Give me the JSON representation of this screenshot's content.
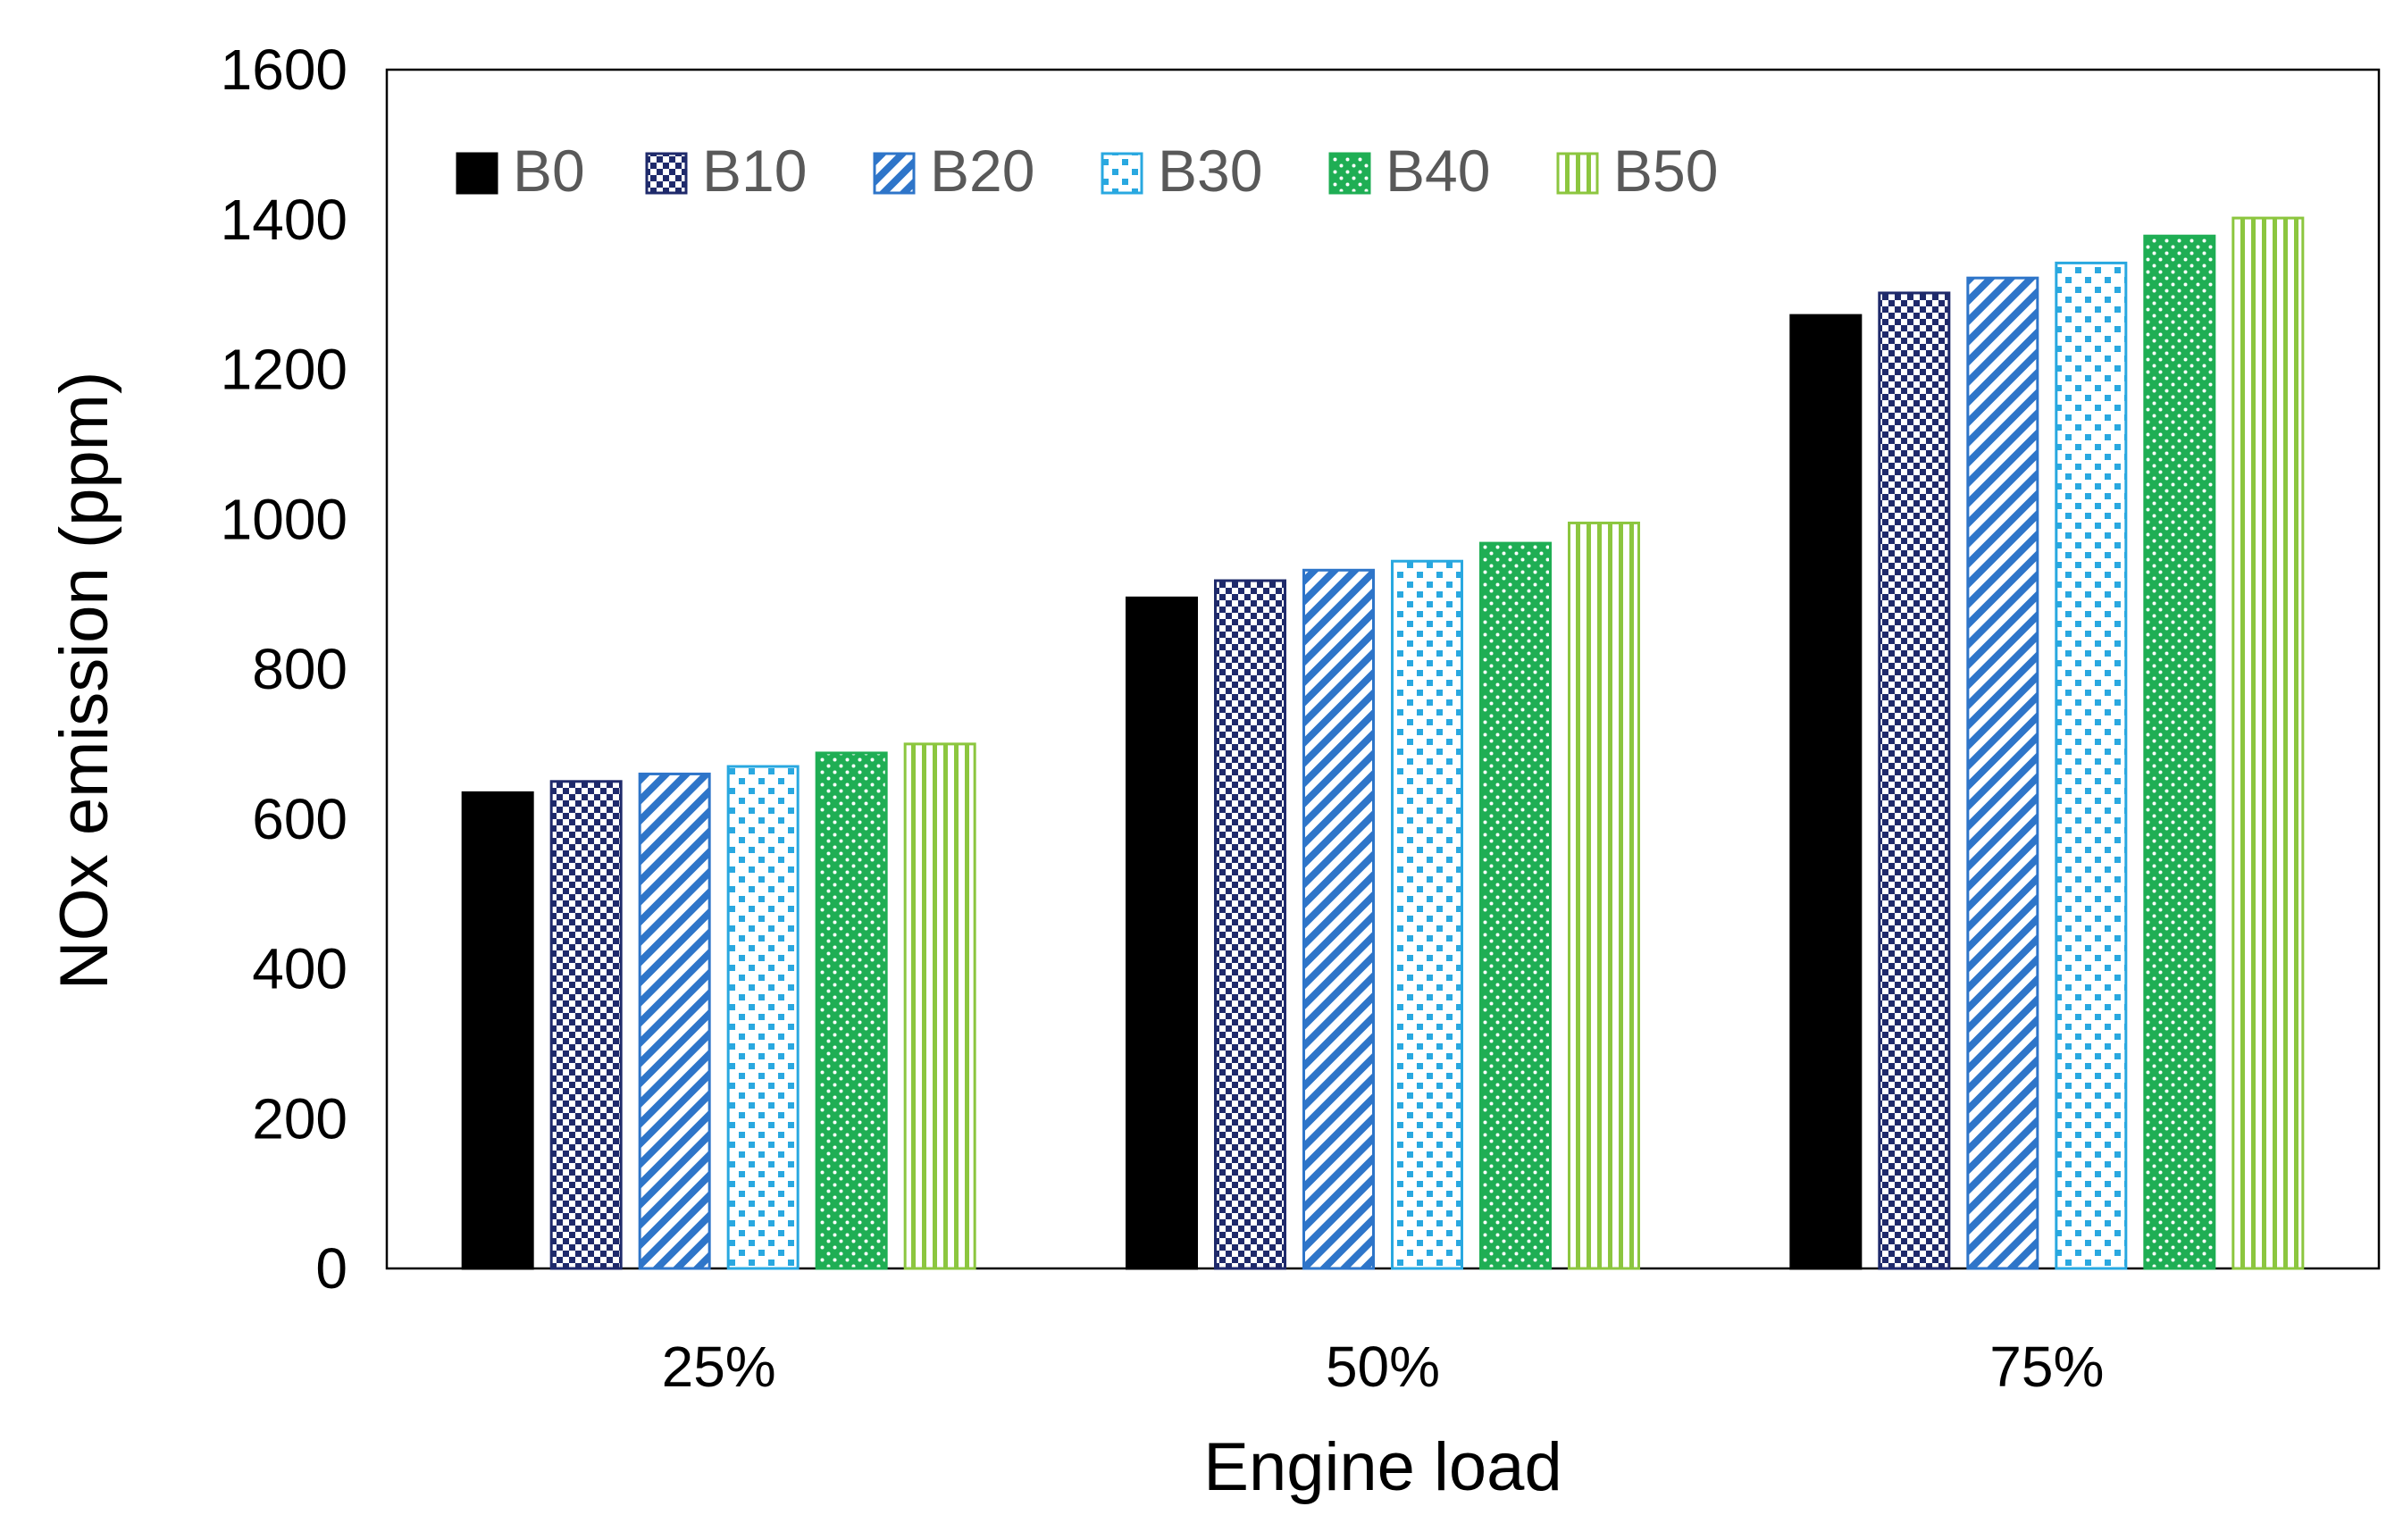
{
  "chart_data": {
    "type": "bar",
    "xlabel": "Engine load",
    "ylabel": "NOx emission (ppm)",
    "ylim": [
      0,
      1600
    ],
    "yticks": [
      0,
      200,
      400,
      600,
      800,
      1000,
      1200,
      1400,
      1600
    ],
    "categories": [
      "25%",
      "50%",
      "75%"
    ],
    "grid": false,
    "legend_position": "top-left",
    "series": [
      {
        "name": "B0",
        "values": [
          635,
          895,
          1272
        ],
        "color": "#000000",
        "pattern": "solid"
      },
      {
        "name": "B10",
        "values": [
          650,
          918,
          1302
        ],
        "color": "#1f2a6b",
        "pattern": "checker"
      },
      {
        "name": "B20",
        "values": [
          660,
          932,
          1322
        ],
        "color": "#2e75c9",
        "pattern": "diagonal"
      },
      {
        "name": "B30",
        "values": [
          670,
          944,
          1342
        ],
        "color": "#29a8e0",
        "pattern": "dots-square"
      },
      {
        "name": "B40",
        "values": [
          688,
          968,
          1378
        ],
        "color": "#1fae54",
        "pattern": "dots"
      },
      {
        "name": "B50",
        "values": [
          700,
          995,
          1402
        ],
        "color": "#8cc63f",
        "pattern": "vertical"
      }
    ]
  }
}
